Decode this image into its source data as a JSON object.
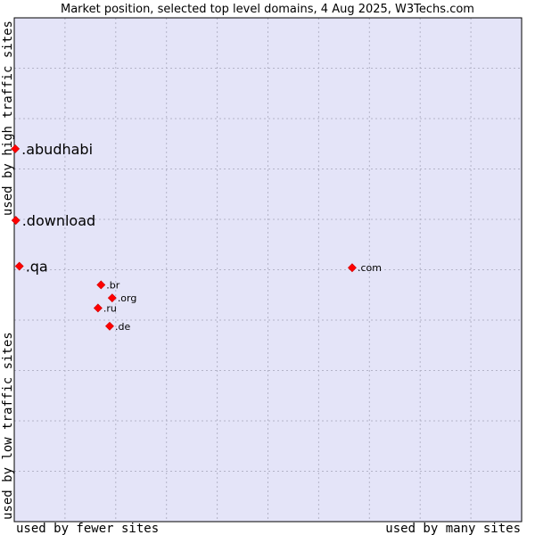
{
  "chart_data": {
    "type": "scatter",
    "title": "Market position, selected top level domains, 4 Aug 2025, W3Techs.com",
    "xlabel_left": "used by fewer sites",
    "xlabel_right": "used by many sites",
    "ylabel_bottom": "used by low traffic sites",
    "ylabel_top": "used by high traffic sites",
    "xlim": [
      0,
      100
    ],
    "ylim": [
      0,
      100
    ],
    "grid": true,
    "colors": {
      "plot_background": "#e4e4f8",
      "grid": "#b4b4c8",
      "marker": "#ff0000",
      "marker_edge": "#cc0000",
      "border": "#000000"
    },
    "points": [
      {
        "label": ".abudhabi",
        "x": 0.2,
        "y": 74.0,
        "size": "large"
      },
      {
        "label": ".download",
        "x": 0.3,
        "y": 59.8,
        "size": "large"
      },
      {
        "label": ".qa",
        "x": 1.0,
        "y": 50.7,
        "size": "large"
      },
      {
        "label": ".com",
        "x": 66.6,
        "y": 50.4,
        "size": "small"
      },
      {
        "label": ".br",
        "x": 17.1,
        "y": 47.0,
        "size": "small"
      },
      {
        "label": ".org",
        "x": 19.3,
        "y": 44.4,
        "size": "small"
      },
      {
        "label": ".ru",
        "x": 16.5,
        "y": 42.4,
        "size": "small"
      },
      {
        "label": ".de",
        "x": 18.8,
        "y": 38.8,
        "size": "small"
      }
    ]
  }
}
